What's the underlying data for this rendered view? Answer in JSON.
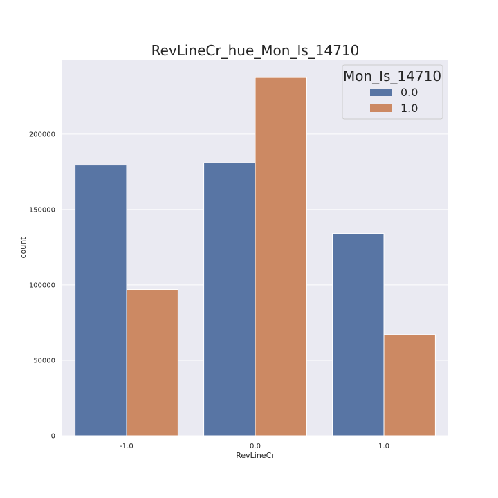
{
  "chart_data": {
    "type": "bar",
    "title": "RevLineCr_hue_Mon_Is_14710",
    "xlabel": "RevLineCr",
    "ylabel": "count",
    "categories": [
      "-1.0",
      "0.0",
      "1.0"
    ],
    "series": [
      {
        "name": "0.0",
        "color": "#5875a4",
        "values": [
          179500,
          181000,
          134000
        ]
      },
      {
        "name": "1.0",
        "color": "#cc8963",
        "values": [
          97000,
          237500,
          67000
        ]
      }
    ],
    "y_ticks": [
      0,
      50000,
      100000,
      150000,
      200000
    ],
    "y_tick_labels": [
      "0",
      "50000",
      "100000",
      "150000",
      "200000"
    ],
    "ylim": [
      0,
      249000
    ],
    "grid": true,
    "legend": {
      "title": "Mon_Is_14710",
      "placement": "top-right"
    },
    "colors": {
      "plot_background": "#eaeaf2",
      "grid": "#ffffff",
      "text": "#262626"
    }
  }
}
